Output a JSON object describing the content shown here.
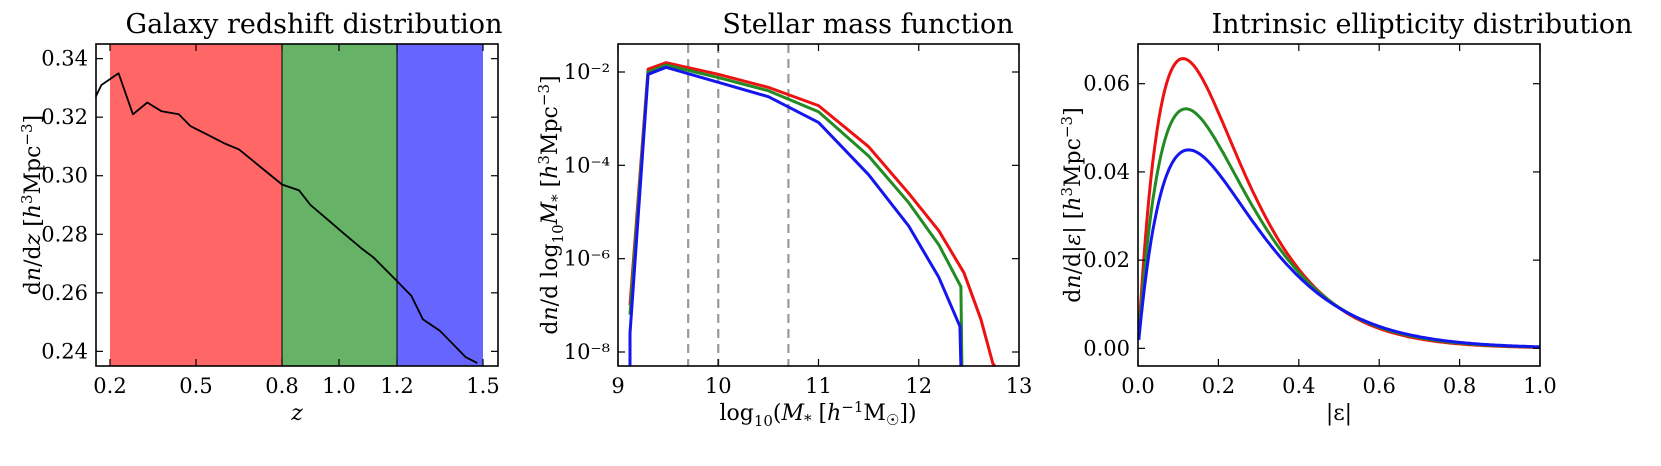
{
  "chart_data": [
    {
      "type": "line",
      "title": "Galaxy redshift distribution",
      "xlabel": "z",
      "ylabel": "dn/dz [h³Mpc⁻³]",
      "xlim": [
        0.15,
        1.52
      ],
      "ylim": [
        0.235,
        0.345
      ],
      "xticks": [
        "0.2",
        "0.5",
        "0.8",
        "1.0",
        "1.2",
        "1.5"
      ],
      "xtick_values": [
        0.2,
        0.5,
        0.8,
        1.0,
        1.2,
        1.5
      ],
      "yticks": [
        "0.24",
        "0.26",
        "0.28",
        "0.30",
        "0.32",
        "0.34"
      ],
      "ytick_values": [
        0.24,
        0.26,
        0.28,
        0.3,
        0.32,
        0.34
      ],
      "bands": [
        {
          "x0": 0.2,
          "x1": 0.8,
          "color": "#ff6666"
        },
        {
          "x0": 0.8,
          "x1": 1.2,
          "color": "#66b266"
        },
        {
          "x0": 1.2,
          "x1": 1.5,
          "color": "#6666ff"
        }
      ],
      "series": [
        {
          "color": "#000000",
          "x": [
            0.15,
            0.17,
            0.2,
            0.23,
            0.28,
            0.33,
            0.38,
            0.44,
            0.48,
            0.54,
            0.6,
            0.65,
            0.7,
            0.8,
            0.86,
            0.9,
            0.96,
            1.02,
            1.08,
            1.12,
            1.18,
            1.2,
            1.25,
            1.29,
            1.35,
            1.39,
            1.44,
            1.48
          ],
          "y": [
            0.327,
            0.331,
            0.333,
            0.335,
            0.321,
            0.325,
            0.322,
            0.321,
            0.317,
            0.314,
            0.311,
            0.309,
            0.305,
            0.297,
            0.295,
            0.29,
            0.285,
            0.28,
            0.275,
            0.272,
            0.266,
            0.264,
            0.259,
            0.251,
            0.247,
            0.243,
            0.238,
            0.236
          ]
        }
      ]
    },
    {
      "type": "line",
      "title": "Stellar mass function",
      "xlabel": "log₁₀(M* [h⁻¹M☉])",
      "ylabel": "dn/d log₁₀M* [h³Mpc⁻³]",
      "xlim": [
        9,
        13
      ],
      "ylim_log10": [
        -8.3,
        -1.4
      ],
      "yscale": "log",
      "xticks": [
        "9",
        "10",
        "11",
        "12",
        "13"
      ],
      "xtick_values": [
        9,
        10,
        11,
        12,
        13
      ],
      "yticks": [
        "10⁻²",
        "10⁻⁴",
        "10⁻⁶",
        "10⁻⁸"
      ],
      "ytick_exponents": [
        -2,
        -4,
        -6,
        -8
      ],
      "vlines": [
        9.7,
        10.0,
        10.7
      ],
      "vline_color": "#999999",
      "series": [
        {
          "color": "#ee1111",
          "x": [
            9.12,
            9.3,
            9.48,
            10.0,
            10.5,
            11.0,
            11.5,
            11.9,
            12.2,
            12.45,
            12.62,
            12.74,
            12.76
          ],
          "log10_y": [
            -7.0,
            -1.94,
            -1.8,
            -2.05,
            -2.33,
            -2.72,
            -3.6,
            -4.6,
            -5.4,
            -6.3,
            -7.3,
            -8.25,
            -8.3
          ]
        },
        {
          "color": "#228b22",
          "x": [
            9.12,
            9.3,
            9.48,
            10.0,
            10.5,
            11.0,
            11.5,
            11.9,
            12.2,
            12.42,
            12.43
          ],
          "log10_y": [
            -7.2,
            -2.0,
            -1.85,
            -2.12,
            -2.4,
            -2.85,
            -3.8,
            -4.8,
            -5.7,
            -6.6,
            -8.3
          ]
        },
        {
          "color": "#1515ee",
          "x": [
            9.12,
            9.12,
            9.3,
            9.48,
            10.0,
            10.5,
            11.0,
            11.5,
            11.9,
            12.2,
            12.41,
            12.42
          ],
          "log10_y": [
            -8.3,
            -7.6,
            -2.05,
            -1.9,
            -2.22,
            -2.53,
            -3.08,
            -4.2,
            -5.3,
            -6.4,
            -7.45,
            -8.3
          ]
        }
      ]
    },
    {
      "type": "line",
      "title": "Intrinsic ellipticity distribution",
      "xlabel": "|ε|",
      "ylabel": "dn/d|ε| [h³Mpc⁻³]",
      "xlim": [
        0,
        1
      ],
      "ylim": [
        -0.004,
        0.069
      ],
      "xticks": [
        "0.0",
        "0.2",
        "0.4",
        "0.6",
        "0.8",
        "1.0"
      ],
      "xtick_values": [
        0,
        0.2,
        0.4,
        0.6,
        0.8,
        1.0
      ],
      "yticks": [
        "0.00",
        "0.02",
        "0.04",
        "0.06"
      ],
      "ytick_values": [
        0,
        0.02,
        0.04,
        0.06
      ],
      "series": [
        {
          "color": "#ee1111",
          "peak": 0.0657,
          "mode": 0.112
        },
        {
          "color": "#228b22",
          "peak": 0.0543,
          "mode": 0.119
        },
        {
          "color": "#1515ee",
          "peak": 0.045,
          "mode": 0.126
        }
      ]
    }
  ]
}
